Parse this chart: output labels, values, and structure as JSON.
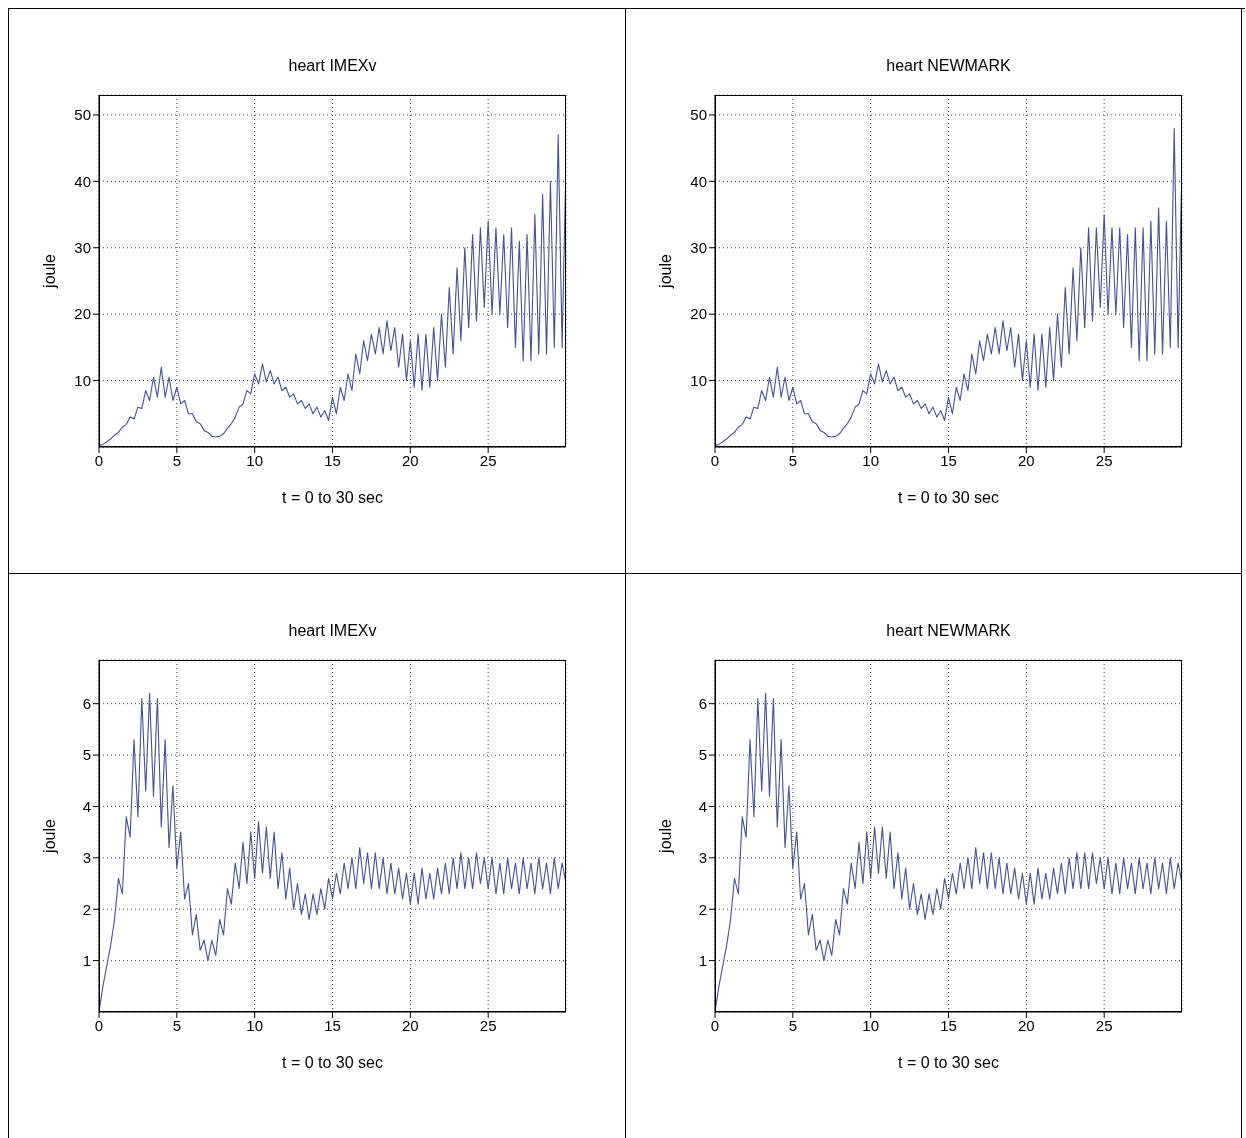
{
  "chart_data": [
    {
      "type": "line",
      "title": "heart IMEXv",
      "xlabel": "t = 0 to 30 sec",
      "ylabel": "joule",
      "color": "#4b4f93",
      "grid": true,
      "xlim": [
        0,
        30
      ],
      "xticks": [
        0,
        5,
        10,
        15,
        20,
        25
      ],
      "ylim": [
        0,
        53
      ],
      "yticks": [
        10,
        20,
        30,
        40,
        50
      ],
      "x": [
        0,
        0.25,
        0.5,
        0.75,
        1,
        1.25,
        1.5,
        1.75,
        2,
        2.25,
        2.5,
        2.75,
        3,
        3.25,
        3.5,
        3.75,
        4,
        4.25,
        4.5,
        4.75,
        5,
        5.25,
        5.5,
        5.75,
        6,
        6.25,
        6.5,
        6.75,
        7,
        7.25,
        7.5,
        7.75,
        8,
        8.25,
        8.5,
        8.75,
        9,
        9.25,
        9.5,
        9.75,
        10,
        10.25,
        10.5,
        10.75,
        11,
        11.25,
        11.5,
        11.75,
        12,
        12.25,
        12.5,
        12.75,
        13,
        13.25,
        13.5,
        13.75,
        14,
        14.25,
        14.5,
        14.75,
        15,
        15.25,
        15.5,
        15.75,
        16,
        16.25,
        16.5,
        16.75,
        17,
        17.25,
        17.5,
        17.75,
        18,
        18.25,
        18.5,
        18.75,
        19,
        19.25,
        19.5,
        19.75,
        20,
        20.25,
        20.5,
        20.75,
        21,
        21.25,
        21.5,
        21.75,
        22,
        22.25,
        22.5,
        22.75,
        23,
        23.25,
        23.5,
        23.75,
        24,
        24.25,
        24.5,
        24.75,
        25,
        25.25,
        25.5,
        25.75,
        26,
        26.25,
        26.5,
        26.75,
        27,
        27.25,
        27.5,
        27.75,
        28,
        28.25,
        28.5,
        28.75,
        29,
        29.25,
        29.5,
        29.75,
        30
      ],
      "values": [
        0.2,
        0.4,
        0.8,
        1.2,
        1.8,
        2.2,
        3,
        3.4,
        4.5,
        4.2,
        6,
        5.8,
        8.5,
        7,
        10.5,
        7.5,
        12,
        7.5,
        10.5,
        7,
        9,
        6.5,
        7,
        5,
        5,
        3.8,
        3.5,
        2.5,
        2.2,
        1.6,
        1.5,
        1.6,
        2,
        2.8,
        3.5,
        4.5,
        6,
        6.5,
        8.5,
        8,
        11,
        9.5,
        12.5,
        9.8,
        11.5,
        9.5,
        10.5,
        8.5,
        9,
        7.5,
        8,
        6.5,
        7,
        5.8,
        6.5,
        5,
        6,
        4.5,
        5.5,
        4,
        7.5,
        5,
        9,
        7,
        11,
        8.5,
        14,
        11,
        16,
        13,
        17,
        14,
        18,
        14,
        19,
        14.5,
        18,
        12,
        17,
        10,
        16,
        9,
        17,
        8.5,
        17,
        9,
        18,
        10,
        20,
        12,
        24,
        14,
        27,
        16,
        30,
        18,
        32,
        19,
        33,
        21,
        34,
        20,
        33,
        20,
        32,
        18,
        33,
        15,
        31,
        13,
        32,
        13,
        35,
        14,
        38,
        14,
        40,
        15,
        47,
        15,
        43
      ]
    },
    {
      "type": "line",
      "title": "heart NEWMARK",
      "xlabel": "t = 0 to 30 sec",
      "ylabel": "joule",
      "color": "#4b4f93",
      "grid": true,
      "xlim": [
        0,
        30
      ],
      "xticks": [
        0,
        5,
        10,
        15,
        20,
        25
      ],
      "ylim": [
        0,
        53
      ],
      "yticks": [
        10,
        20,
        30,
        40,
        50
      ],
      "x": [
        0,
        0.25,
        0.5,
        0.75,
        1,
        1.25,
        1.5,
        1.75,
        2,
        2.25,
        2.5,
        2.75,
        3,
        3.25,
        3.5,
        3.75,
        4,
        4.25,
        4.5,
        4.75,
        5,
        5.25,
        5.5,
        5.75,
        6,
        6.25,
        6.5,
        6.75,
        7,
        7.25,
        7.5,
        7.75,
        8,
        8.25,
        8.5,
        8.75,
        9,
        9.25,
        9.5,
        9.75,
        10,
        10.25,
        10.5,
        10.75,
        11,
        11.25,
        11.5,
        11.75,
        12,
        12.25,
        12.5,
        12.75,
        13,
        13.25,
        13.5,
        13.75,
        14,
        14.25,
        14.5,
        14.75,
        15,
        15.25,
        15.5,
        15.75,
        16,
        16.25,
        16.5,
        16.75,
        17,
        17.25,
        17.5,
        17.75,
        18,
        18.25,
        18.5,
        18.75,
        19,
        19.25,
        19.5,
        19.75,
        20,
        20.25,
        20.5,
        20.75,
        21,
        21.25,
        21.5,
        21.75,
        22,
        22.25,
        22.5,
        22.75,
        23,
        23.25,
        23.5,
        23.75,
        24,
        24.25,
        24.5,
        24.75,
        25,
        25.25,
        25.5,
        25.75,
        26,
        26.25,
        26.5,
        26.75,
        27,
        27.25,
        27.5,
        27.75,
        28,
        28.25,
        28.5,
        28.75,
        29,
        29.25,
        29.5,
        29.75,
        30
      ],
      "values": [
        0.2,
        0.4,
        0.8,
        1.2,
        1.8,
        2.2,
        3,
        3.4,
        4.5,
        4.2,
        6,
        5.8,
        8.5,
        7,
        10.5,
        7.5,
        12,
        7.5,
        10.5,
        7,
        9,
        6.5,
        7,
        5,
        5,
        3.8,
        3.5,
        2.5,
        2.2,
        1.6,
        1.5,
        1.6,
        2,
        2.8,
        3.5,
        4.5,
        6,
        6.5,
        8.5,
        8,
        11,
        9.5,
        12.5,
        9.8,
        11.5,
        9.5,
        10.5,
        8.5,
        9,
        7.5,
        8,
        6.5,
        7,
        5.8,
        6.5,
        5,
        6,
        4.5,
        5.5,
        4,
        7.5,
        5,
        9,
        7,
        11,
        8.5,
        14,
        11,
        16,
        13,
        17,
        14,
        18,
        14,
        19,
        14.5,
        18,
        12,
        17,
        10,
        16,
        9,
        17,
        8.5,
        17,
        9,
        18,
        10,
        20,
        12,
        24,
        14,
        27,
        16,
        30,
        18,
        33,
        19,
        33,
        21,
        35,
        20,
        33,
        20,
        33,
        18,
        32,
        15,
        33,
        13,
        33,
        13,
        34,
        14,
        36,
        14,
        34,
        15,
        48,
        15,
        43
      ]
    },
    {
      "type": "line",
      "title": "heart IMEXv",
      "xlabel": "t = 0 to 30 sec",
      "ylabel": "joule",
      "color": "#4b4f93",
      "grid": true,
      "xlim": [
        0,
        30
      ],
      "xticks": [
        0,
        5,
        10,
        15,
        20,
        25
      ],
      "ylim": [
        0,
        6.85
      ],
      "yticks": [
        1,
        2,
        3,
        4,
        5,
        6
      ],
      "x": [
        0,
        0.25,
        0.5,
        0.75,
        1,
        1.25,
        1.5,
        1.75,
        2,
        2.25,
        2.5,
        2.75,
        3,
        3.25,
        3.5,
        3.75,
        4,
        4.25,
        4.5,
        4.75,
        5,
        5.25,
        5.5,
        5.75,
        6,
        6.25,
        6.5,
        6.75,
        7,
        7.25,
        7.5,
        7.75,
        8,
        8.25,
        8.5,
        8.75,
        9,
        9.25,
        9.5,
        9.75,
        10,
        10.25,
        10.5,
        10.75,
        11,
        11.25,
        11.5,
        11.75,
        12,
        12.25,
        12.5,
        12.75,
        13,
        13.25,
        13.5,
        13.75,
        14,
        14.25,
        14.5,
        14.75,
        15,
        15.25,
        15.5,
        15.75,
        16,
        16.25,
        16.5,
        16.75,
        17,
        17.25,
        17.5,
        17.75,
        18,
        18.25,
        18.5,
        18.75,
        19,
        19.25,
        19.5,
        19.75,
        20,
        20.25,
        20.5,
        20.75,
        21,
        21.25,
        21.5,
        21.75,
        22,
        22.25,
        22.5,
        22.75,
        23,
        23.25,
        23.5,
        23.75,
        24,
        24.25,
        24.5,
        24.75,
        25,
        25.25,
        25.5,
        25.75,
        26,
        26.25,
        26.5,
        26.75,
        27,
        27.25,
        27.5,
        27.75,
        28,
        28.25,
        28.5,
        28.75,
        29,
        29.25,
        29.5,
        29.75,
        30
      ],
      "values": [
        0,
        0.5,
        0.9,
        1.3,
        1.8,
        2.6,
        2.3,
        3.8,
        3.4,
        5.3,
        3.8,
        6.1,
        4.3,
        6.2,
        4.2,
        6.1,
        3.6,
        5.3,
        3.2,
        4.4,
        2.8,
        3.5,
        2.2,
        2.5,
        1.5,
        1.9,
        1.2,
        1.4,
        1,
        1.4,
        1.1,
        1.8,
        1.5,
        2.4,
        2.1,
        2.9,
        2.4,
        3.3,
        2.5,
        3.5,
        2.6,
        3.7,
        2.7,
        3.6,
        2.6,
        3.5,
        2.4,
        3.1,
        2.2,
        2.8,
        2,
        2.5,
        1.9,
        2.3,
        1.8,
        2.3,
        1.9,
        2.4,
        2,
        2.6,
        2.2,
        2.7,
        2.3,
        2.9,
        2.4,
        3,
        2.4,
        3.2,
        2.5,
        3.1,
        2.4,
        3.1,
        2.4,
        3,
        2.3,
        2.9,
        2.3,
        2.8,
        2.2,
        2.7,
        2.1,
        2.7,
        2.1,
        2.8,
        2.2,
        2.7,
        2.2,
        2.8,
        2.3,
        2.9,
        2.3,
        3,
        2.4,
        3.1,
        2.4,
        3,
        2.4,
        3.1,
        2.5,
        3,
        2.4,
        3,
        2.3,
        2.9,
        2.3,
        3,
        2.4,
        2.9,
        2.3,
        3,
        2.4,
        2.9,
        2.3,
        3,
        2.4,
        2.9,
        2.3,
        3,
        2.4,
        2.9,
        2.5
      ]
    },
    {
      "type": "line",
      "title": "heart NEWMARK",
      "xlabel": "t = 0 to 30 sec",
      "ylabel": "joule",
      "color": "#4b4f93",
      "grid": true,
      "xlim": [
        0,
        30
      ],
      "xticks": [
        0,
        5,
        10,
        15,
        20,
        25
      ],
      "ylim": [
        0,
        6.85
      ],
      "yticks": [
        1,
        2,
        3,
        4,
        5,
        6
      ],
      "x": [
        0,
        0.25,
        0.5,
        0.75,
        1,
        1.25,
        1.5,
        1.75,
        2,
        2.25,
        2.5,
        2.75,
        3,
        3.25,
        3.5,
        3.75,
        4,
        4.25,
        4.5,
        4.75,
        5,
        5.25,
        5.5,
        5.75,
        6,
        6.25,
        6.5,
        6.75,
        7,
        7.25,
        7.5,
        7.75,
        8,
        8.25,
        8.5,
        8.75,
        9,
        9.25,
        9.5,
        9.75,
        10,
        10.25,
        10.5,
        10.75,
        11,
        11.25,
        11.5,
        11.75,
        12,
        12.25,
        12.5,
        12.75,
        13,
        13.25,
        13.5,
        13.75,
        14,
        14.25,
        14.5,
        14.75,
        15,
        15.25,
        15.5,
        15.75,
        16,
        16.25,
        16.5,
        16.75,
        17,
        17.25,
        17.5,
        17.75,
        18,
        18.25,
        18.5,
        18.75,
        19,
        19.25,
        19.5,
        19.75,
        20,
        20.25,
        20.5,
        20.75,
        21,
        21.25,
        21.5,
        21.75,
        22,
        22.25,
        22.5,
        22.75,
        23,
        23.25,
        23.5,
        23.75,
        24,
        24.25,
        24.5,
        24.75,
        25,
        25.25,
        25.5,
        25.75,
        26,
        26.25,
        26.5,
        26.75,
        27,
        27.25,
        27.5,
        27.75,
        28,
        28.25,
        28.5,
        28.75,
        29,
        29.25,
        29.5,
        29.75,
        30
      ],
      "values": [
        0,
        0.5,
        0.9,
        1.3,
        1.8,
        2.6,
        2.3,
        3.8,
        3.4,
        5.3,
        3.8,
        6.1,
        4.3,
        6.2,
        4.2,
        6.1,
        3.6,
        5.3,
        3.2,
        4.4,
        2.8,
        3.5,
        2.2,
        2.5,
        1.5,
        1.9,
        1.2,
        1.4,
        1,
        1.4,
        1.1,
        1.8,
        1.5,
        2.4,
        2.1,
        2.9,
        2.4,
        3.3,
        2.5,
        3.5,
        2.6,
        3.6,
        2.7,
        3.6,
        2.6,
        3.5,
        2.4,
        3.1,
        2.2,
        2.8,
        2,
        2.5,
        1.9,
        2.3,
        1.8,
        2.3,
        1.9,
        2.4,
        2,
        2.6,
        2.2,
        2.7,
        2.3,
        2.9,
        2.4,
        3,
        2.4,
        3.2,
        2.5,
        3.1,
        2.4,
        3.1,
        2.4,
        3,
        2.3,
        2.9,
        2.3,
        2.8,
        2.2,
        2.7,
        2.1,
        2.7,
        2.1,
        2.8,
        2.2,
        2.7,
        2.2,
        2.8,
        2.3,
        2.9,
        2.3,
        3,
        2.4,
        3.1,
        2.4,
        3.1,
        2.4,
        3.1,
        2.5,
        3,
        2.4,
        3,
        2.3,
        2.9,
        2.3,
        3,
        2.4,
        2.9,
        2.3,
        3,
        2.4,
        2.9,
        2.3,
        3,
        2.4,
        2.9,
        2.3,
        3,
        2.4,
        2.9,
        2.5
      ]
    }
  ]
}
